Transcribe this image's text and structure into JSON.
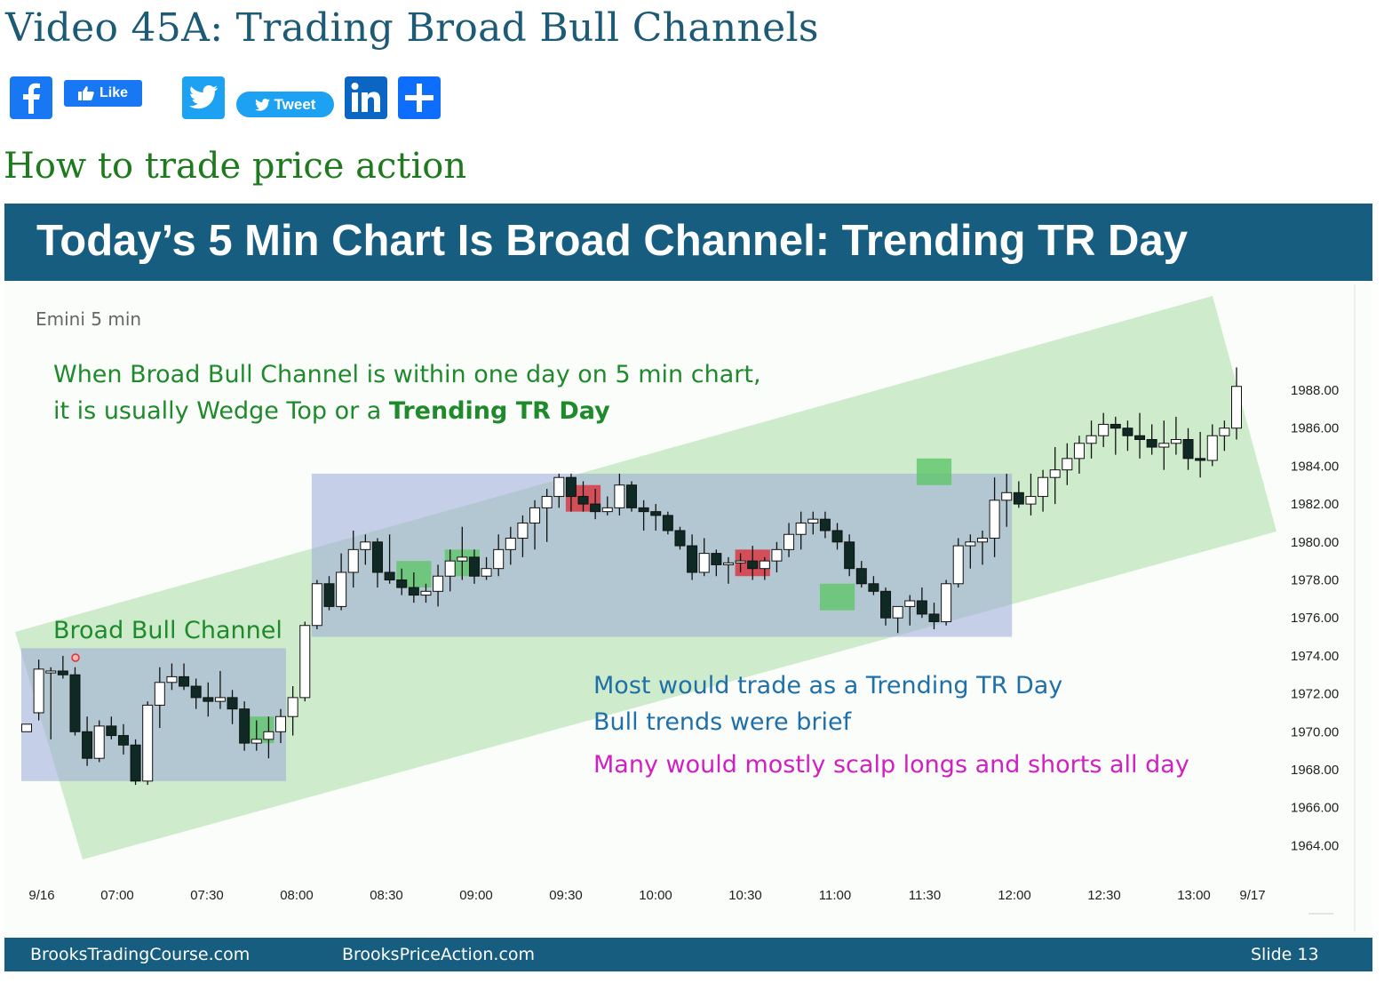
{
  "page": {
    "title": "Video 45A: Trading Broad Bull Channels",
    "subtitle": "How to trade price action"
  },
  "share": {
    "facebook_icon": "facebook-f-icon",
    "like_label": "Like",
    "twitter_icon": "twitter-bird-icon",
    "tweet_label": "Tweet",
    "linkedin_icon": "linkedin-in-icon",
    "share_more_icon": "plus-icon",
    "colors": {
      "facebook": "#1877f2",
      "twitter": "#1da1f2",
      "linkedin": "#0a66c2",
      "share": "#0d6efd"
    }
  },
  "slide": {
    "title_bold": "Today’s 5 Min Chart Is Broad Channel:",
    "title_regular": " Trending TR Day",
    "header_color": "#165d80",
    "footer": {
      "left": "BrooksTradingCourse.com",
      "center": "BrooksPriceAction.com",
      "right": "Slide  13"
    }
  },
  "annotations": {
    "instrument": "Emini 5 min",
    "note_line1": "When Broad Bull Channel is within one day on 5 min chart,",
    "note_line2_prefix": "it is usually Wedge Top or a ",
    "note_line2_bold": "Trending TR Day",
    "channel_label": "Broad Bull Channel",
    "most_would": "Most would trade as a Trending TR Day",
    "bull_trends": "Bull trends were brief",
    "scalp": "Many would mostly scalp longs and shorts all day"
  },
  "chart_data": {
    "type": "candlestick",
    "title": "",
    "xlabel": "",
    "ylabel": "",
    "ylim": [
      1963,
      1991
    ],
    "yticks": [
      "1988.00",
      "1986.00",
      "1984.00",
      "1982.00",
      "1980.00",
      "1978.00",
      "1976.00",
      "1974.00",
      "1972.00",
      "1970.00",
      "1968.00",
      "1966.00",
      "1964.00"
    ],
    "xticks": [
      "9/16",
      "07:00",
      "07:30",
      "08:00",
      "08:30",
      "09:00",
      "09:30",
      "10:00",
      "10:30",
      "11:00",
      "11:30",
      "12:00",
      "12:30",
      "13:00",
      "9/17"
    ],
    "grid": false,
    "colors": {
      "bull": "#ffffff",
      "bear": "#0f2a25",
      "wick": "#111111",
      "channel": "#b5e3b0",
      "range_box": "#9aa9d9",
      "signal_bull": "#5fc66a",
      "signal_bear": "#d9303a"
    },
    "candles": [
      [
        1970.0,
        1970.4,
        1970.0,
        1970.4
      ],
      [
        1971.0,
        1973.8,
        1970.6,
        1973.3
      ],
      [
        1973.1,
        1973.4,
        1969.6,
        1973.2
      ],
      [
        1973.2,
        1974.0,
        1972.8,
        1973.0
      ],
      [
        1973.0,
        1973.4,
        1969.8,
        1970.0
      ],
      [
        1970.0,
        1970.8,
        1968.2,
        1968.6
      ],
      [
        1968.6,
        1970.6,
        1968.4,
        1970.3
      ],
      [
        1970.3,
        1970.8,
        1969.6,
        1969.8
      ],
      [
        1969.8,
        1970.4,
        1968.8,
        1969.3
      ],
      [
        1969.3,
        1969.6,
        1967.2,
        1967.4
      ],
      [
        1967.4,
        1971.6,
        1967.2,
        1971.4
      ],
      [
        1971.4,
        1973.4,
        1970.2,
        1972.6
      ],
      [
        1972.6,
        1973.6,
        1972.2,
        1972.9
      ],
      [
        1972.9,
        1973.6,
        1972.2,
        1972.4
      ],
      [
        1972.4,
        1972.8,
        1971.2,
        1971.8
      ],
      [
        1971.8,
        1972.6,
        1970.8,
        1971.6
      ],
      [
        1971.6,
        1973.2,
        1971.2,
        1971.8
      ],
      [
        1971.8,
        1972.2,
        1970.4,
        1971.2
      ],
      [
        1971.2,
        1971.6,
        1969.0,
        1969.4
      ],
      [
        1969.4,
        1970.6,
        1969.0,
        1969.6
      ],
      [
        1969.6,
        1970.8,
        1968.6,
        1970.0
      ],
      [
        1970.0,
        1971.2,
        1969.4,
        1970.8
      ],
      [
        1970.8,
        1972.4,
        1969.8,
        1971.8
      ],
      [
        1971.8,
        1975.8,
        1971.6,
        1975.6
      ],
      [
        1975.6,
        1978.0,
        1975.4,
        1977.8
      ],
      [
        1977.8,
        1978.2,
        1976.4,
        1976.6
      ],
      [
        1976.6,
        1979.4,
        1976.4,
        1978.4
      ],
      [
        1978.4,
        1980.6,
        1977.6,
        1979.6
      ],
      [
        1979.6,
        1980.4,
        1978.8,
        1980.0
      ],
      [
        1980.0,
        1980.2,
        1977.6,
        1978.4
      ],
      [
        1978.4,
        1980.4,
        1977.8,
        1978.0
      ],
      [
        1978.0,
        1978.6,
        1977.2,
        1977.6
      ],
      [
        1977.6,
        1978.4,
        1976.8,
        1977.2
      ],
      [
        1977.2,
        1977.8,
        1976.8,
        1977.4
      ],
      [
        1977.4,
        1978.8,
        1976.6,
        1978.2
      ],
      [
        1978.2,
        1979.6,
        1977.4,
        1979.0
      ],
      [
        1979.0,
        1980.8,
        1978.0,
        1979.2
      ],
      [
        1979.2,
        1979.6,
        1977.8,
        1978.2
      ],
      [
        1978.2,
        1979.2,
        1978.0,
        1978.6
      ],
      [
        1978.6,
        1980.4,
        1978.2,
        1979.6
      ],
      [
        1979.6,
        1980.8,
        1978.8,
        1980.2
      ],
      [
        1980.2,
        1981.4,
        1979.2,
        1981.0
      ],
      [
        1981.0,
        1982.2,
        1979.6,
        1981.8
      ],
      [
        1981.8,
        1982.8,
        1980.0,
        1982.4
      ],
      [
        1982.4,
        1983.6,
        1981.8,
        1983.4
      ],
      [
        1983.4,
        1983.6,
        1981.6,
        1982.4
      ],
      [
        1982.4,
        1983.2,
        1981.6,
        1982.0
      ],
      [
        1982.0,
        1982.8,
        1981.2,
        1981.6
      ],
      [
        1981.6,
        1982.4,
        1981.4,
        1981.8
      ],
      [
        1981.8,
        1983.6,
        1981.4,
        1983.0
      ],
      [
        1983.0,
        1983.2,
        1981.6,
        1981.8
      ],
      [
        1981.8,
        1982.2,
        1980.6,
        1981.6
      ],
      [
        1981.6,
        1982.0,
        1980.6,
        1981.4
      ],
      [
        1981.4,
        1981.6,
        1980.4,
        1980.6
      ],
      [
        1980.6,
        1980.8,
        1979.6,
        1979.8
      ],
      [
        1979.8,
        1980.4,
        1978.0,
        1978.4
      ],
      [
        1978.4,
        1980.2,
        1978.2,
        1979.4
      ],
      [
        1979.4,
        1979.6,
        1978.2,
        1978.8
      ],
      [
        1978.8,
        1979.2,
        1977.8,
        1978.9
      ],
      [
        1978.9,
        1979.4,
        1978.4,
        1979.0
      ],
      [
        1979.0,
        1979.8,
        1978.0,
        1978.6
      ],
      [
        1978.6,
        1979.2,
        1978.0,
        1979.0
      ],
      [
        1979.0,
        1980.0,
        1978.4,
        1979.6
      ],
      [
        1979.6,
        1981.0,
        1979.2,
        1980.4
      ],
      [
        1980.4,
        1981.6,
        1979.6,
        1981.0
      ],
      [
        1981.0,
        1981.6,
        1980.4,
        1981.2
      ],
      [
        1981.2,
        1981.6,
        1980.2,
        1980.6
      ],
      [
        1980.6,
        1981.0,
        1979.6,
        1980.0
      ],
      [
        1980.0,
        1980.4,
        1978.2,
        1978.6
      ],
      [
        1978.6,
        1979.0,
        1977.6,
        1977.8
      ],
      [
        1977.8,
        1978.2,
        1977.2,
        1977.4
      ],
      [
        1977.4,
        1977.6,
        1975.6,
        1976.0
      ],
      [
        1976.0,
        1976.6,
        1975.2,
        1976.6
      ],
      [
        1976.6,
        1977.2,
        1975.6,
        1976.9
      ],
      [
        1976.9,
        1977.6,
        1976.0,
        1976.2
      ],
      [
        1976.2,
        1976.8,
        1975.4,
        1975.8
      ],
      [
        1975.8,
        1978.0,
        1975.6,
        1977.8
      ],
      [
        1977.8,
        1980.2,
        1977.6,
        1979.8
      ],
      [
        1979.8,
        1980.4,
        1978.6,
        1980.0
      ],
      [
        1980.0,
        1980.6,
        1978.8,
        1980.2
      ],
      [
        1980.2,
        1983.4,
        1979.2,
        1982.2
      ],
      [
        1982.2,
        1983.6,
        1980.8,
        1982.6
      ],
      [
        1982.6,
        1983.2,
        1981.8,
        1982.0
      ],
      [
        1982.0,
        1983.6,
        1981.4,
        1982.4
      ],
      [
        1982.4,
        1983.8,
        1981.6,
        1983.4
      ],
      [
        1983.4,
        1985.0,
        1982.0,
        1983.8
      ],
      [
        1983.8,
        1985.2,
        1983.0,
        1984.4
      ],
      [
        1984.4,
        1985.6,
        1983.6,
        1985.2
      ],
      [
        1985.2,
        1986.4,
        1984.4,
        1985.6
      ],
      [
        1985.6,
        1986.8,
        1985.0,
        1986.2
      ],
      [
        1986.2,
        1986.6,
        1984.6,
        1986.0
      ],
      [
        1986.0,
        1986.4,
        1984.8,
        1985.6
      ],
      [
        1985.6,
        1986.8,
        1984.4,
        1985.4
      ],
      [
        1985.4,
        1986.2,
        1984.6,
        1985.0
      ],
      [
        1985.0,
        1986.4,
        1983.8,
        1985.2
      ],
      [
        1985.2,
        1986.6,
        1984.6,
        1985.4
      ],
      [
        1985.4,
        1986.0,
        1983.8,
        1984.4
      ],
      [
        1984.4,
        1985.8,
        1983.4,
        1984.3
      ],
      [
        1984.3,
        1986.2,
        1984.0,
        1985.6
      ],
      [
        1985.6,
        1986.4,
        1984.8,
        1986.0
      ],
      [
        1986.0,
        1989.2,
        1985.4,
        1988.2
      ]
    ],
    "channel": {
      "lower_start": [
        0,
        1972.6
      ],
      "lower_end": [
        100,
        1980.6
      ],
      "upper_start": [
        0,
        1975.6
      ],
      "upper_end": [
        100,
        1990.8
      ]
    },
    "range_boxes": [
      {
        "x_from": 0,
        "x_to": 21,
        "y_low": 1967.4,
        "y_high": 1974.4
      },
      {
        "x_from": 24,
        "x_to": 81,
        "y_low": 1975.0,
        "y_high": 1983.6
      }
    ],
    "signal_boxes": [
      {
        "kind": "bull",
        "x_from": 18,
        "x_to": 20,
        "y_low": 1969.4,
        "y_high": 1970.8
      },
      {
        "kind": "bull",
        "x_from": 31,
        "x_to": 33,
        "y_low": 1977.6,
        "y_high": 1979.0
      },
      {
        "kind": "bull",
        "x_from": 35,
        "x_to": 37,
        "y_low": 1978.2,
        "y_high": 1979.6
      },
      {
        "kind": "bear",
        "x_from": 45,
        "x_to": 47,
        "y_low": 1981.6,
        "y_high": 1983.0
      },
      {
        "kind": "bear",
        "x_from": 59,
        "x_to": 61,
        "y_low": 1978.2,
        "y_high": 1979.6
      },
      {
        "kind": "bull",
        "x_from": 66,
        "x_to": 68,
        "y_low": 1976.4,
        "y_high": 1977.8
      },
      {
        "kind": "bull",
        "x_from": 74,
        "x_to": 76,
        "y_low": 1983.0,
        "y_high": 1984.4
      }
    ]
  }
}
